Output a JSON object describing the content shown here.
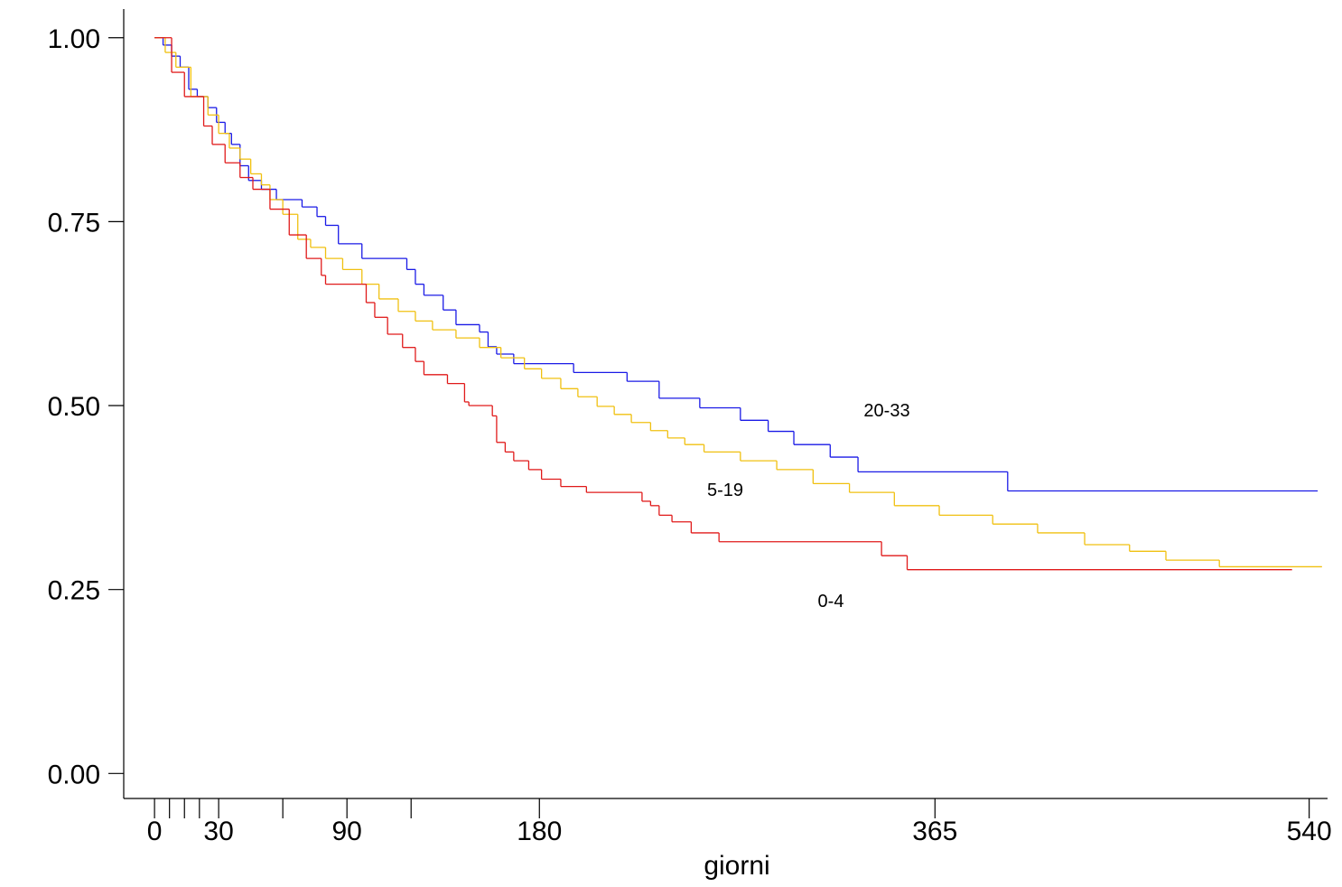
{
  "chart_data": {
    "type": "step",
    "xlabel": "giorni",
    "xlim": [
      -14.4,
      548.6
    ],
    "ylim": [
      -0.034,
      1.039
    ],
    "xticks": [
      0,
      {
        "value": 7,
        "label": null
      },
      {
        "value": 14,
        "label": null
      },
      {
        "value": 21,
        "label": null
      },
      30,
      {
        "value": 60,
        "label": null
      },
      90,
      {
        "value": 120,
        "label": null
      },
      180,
      365,
      540
    ],
    "yticks": [
      {
        "value": 0,
        "label": "0.00"
      },
      {
        "value": 0.25,
        "label": "0.25"
      },
      {
        "value": 0.5,
        "label": "0.50"
      },
      {
        "value": 0.75,
        "label": "0.75"
      },
      {
        "value": 1,
        "label": "1.00"
      }
    ],
    "series": [
      {
        "name": "20-33",
        "color": "#1a1ae6",
        "x": [
          0,
          4,
          8,
          12,
          16,
          20,
          25,
          29,
          33,
          36,
          40,
          44,
          50,
          57,
          69,
          76,
          80,
          86,
          97,
          118,
          122,
          126,
          135,
          141,
          152,
          156,
          160,
          168,
          196,
          221,
          236,
          255,
          274,
          287,
          299,
          316,
          329,
          399,
          544
        ],
        "values": [
          1.0,
          0.99,
          0.975,
          0.96,
          0.93,
          0.92,
          0.905,
          0.885,
          0.87,
          0.855,
          0.826,
          0.806,
          0.794,
          0.78,
          0.77,
          0.757,
          0.745,
          0.72,
          0.7,
          0.685,
          0.665,
          0.65,
          0.63,
          0.61,
          0.6,
          0.58,
          0.57,
          0.557,
          0.545,
          0.533,
          0.51,
          0.497,
          0.48,
          0.465,
          0.447,
          0.43,
          0.41,
          0.384,
          0.384
        ]
      },
      {
        "name": "5-19",
        "color": "#f0c010",
        "x": [
          0,
          5,
          10,
          17,
          25,
          30,
          35,
          40,
          45,
          50,
          54,
          60,
          67,
          73,
          80,
          88,
          97,
          105,
          114,
          122,
          130,
          141,
          152,
          162,
          173,
          181,
          190,
          198,
          207,
          215,
          223,
          232,
          240,
          248,
          257,
          274,
          291,
          308,
          325,
          346,
          367,
          392,
          413,
          435,
          456,
          473,
          498,
          546
        ],
        "values": [
          1.0,
          0.98,
          0.96,
          0.92,
          0.895,
          0.87,
          0.85,
          0.835,
          0.815,
          0.8,
          0.78,
          0.76,
          0.726,
          0.715,
          0.7,
          0.685,
          0.665,
          0.645,
          0.628,
          0.615,
          0.603,
          0.592,
          0.579,
          0.565,
          0.55,
          0.537,
          0.523,
          0.512,
          0.499,
          0.488,
          0.477,
          0.466,
          0.456,
          0.447,
          0.437,
          0.425,
          0.413,
          0.394,
          0.382,
          0.364,
          0.351,
          0.339,
          0.327,
          0.311,
          0.302,
          0.29,
          0.281,
          0.281
        ]
      },
      {
        "name": "0-4",
        "color": "#e01a1a",
        "x": [
          0,
          8,
          14,
          23,
          27,
          33,
          40,
          46,
          54,
          63,
          71,
          78,
          80,
          99,
          103,
          109,
          116,
          122,
          126,
          137,
          145,
          147,
          158,
          160,
          164,
          168,
          175,
          181,
          190,
          202,
          228,
          232,
          236,
          242,
          251,
          264,
          340,
          352,
          532
        ],
        "values": [
          1.0,
          0.953,
          0.92,
          0.88,
          0.855,
          0.83,
          0.81,
          0.794,
          0.767,
          0.732,
          0.7,
          0.677,
          0.665,
          0.64,
          0.62,
          0.597,
          0.579,
          0.56,
          0.542,
          0.53,
          0.505,
          0.5,
          0.486,
          0.45,
          0.437,
          0.425,
          0.413,
          0.4,
          0.39,
          0.382,
          0.37,
          0.364,
          0.351,
          0.342,
          0.327,
          0.315,
          0.296,
          0.277,
          0.277
        ]
      }
    ]
  }
}
